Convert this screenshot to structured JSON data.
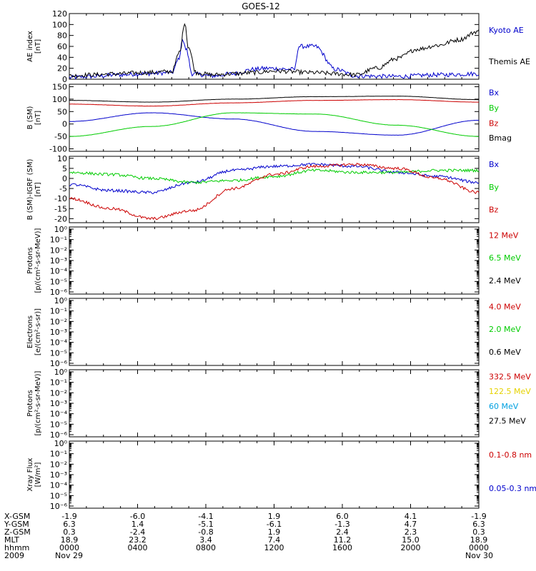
{
  "title": "GOES-12",
  "colors": {
    "black": "#000000",
    "red": "#cc0000",
    "green": "#00cc00",
    "blue": "#0000cc",
    "yellow": "#e6d200",
    "cyan": "#00a0e0"
  },
  "chart_data": [
    {
      "type": "line",
      "id": "ae",
      "ylabel": [
        "AE index",
        "[nT]"
      ],
      "yticks": [
        0,
        20,
        40,
        60,
        80,
        100,
        120
      ],
      "ylim": [
        0,
        120
      ],
      "yscale": "linear",
      "series": [
        {
          "name": "Kyoto AE",
          "color": "#0000cc",
          "x": [
            0,
            0.05,
            0.12,
            0.18,
            0.25,
            0.27,
            0.275,
            0.285,
            0.3,
            0.35,
            0.4,
            0.45,
            0.48,
            0.55,
            0.56,
            0.6,
            0.65,
            0.7,
            0.8,
            0.9,
            1.0
          ],
          "y": [
            3,
            5,
            8,
            10,
            12,
            40,
            75,
            55,
            10,
            6,
            10,
            18,
            20,
            18,
            60,
            60,
            18,
            6,
            5,
            8,
            10
          ]
        },
        {
          "name": "Themis AE",
          "color": "#000000",
          "x": [
            0,
            0.05,
            0.12,
            0.18,
            0.25,
            0.27,
            0.282,
            0.29,
            0.31,
            0.35,
            0.4,
            0.45,
            0.5,
            0.6,
            0.65,
            0.7,
            0.75,
            0.8,
            0.85,
            0.9,
            0.95,
            1.0
          ],
          "y": [
            6,
            8,
            10,
            12,
            14,
            50,
            105,
            60,
            12,
            8,
            10,
            12,
            15,
            12,
            10,
            8,
            20,
            38,
            55,
            62,
            72,
            88
          ]
        }
      ]
    },
    {
      "type": "line",
      "id": "bsm",
      "ylabel": [
        "B (SM)",
        "[nT]"
      ],
      "yticks": [
        -100,
        -50,
        0,
        50,
        100,
        150
      ],
      "ylim": [
        -110,
        160
      ],
      "yscale": "linear",
      "series": [
        {
          "name": "Bx",
          "color": "#0000cc",
          "x": [
            0,
            0.2,
            0.4,
            0.6,
            0.8,
            1.0
          ],
          "y": [
            10,
            45,
            20,
            -30,
            -45,
            15
          ]
        },
        {
          "name": "By",
          "color": "#00cc00",
          "x": [
            0,
            0.2,
            0.4,
            0.6,
            0.8,
            1.0
          ],
          "y": [
            -50,
            -10,
            45,
            40,
            -5,
            -50
          ]
        },
        {
          "name": "Bz",
          "color": "#cc0000",
          "x": [
            0,
            0.2,
            0.4,
            0.6,
            0.8,
            1.0
          ],
          "y": [
            80,
            72,
            85,
            95,
            98,
            88
          ]
        },
        {
          "name": "Bmag",
          "color": "#000000",
          "x": [
            0,
            0.2,
            0.4,
            0.6,
            0.8,
            1.0
          ],
          "y": [
            95,
            88,
            100,
            110,
            112,
            98
          ]
        }
      ]
    },
    {
      "type": "line",
      "id": "bigrf",
      "ylabel": [
        "B (SM)-IGRF (SM)",
        "[nT]"
      ],
      "yticks": [
        -20,
        -15,
        -10,
        -5,
        0,
        5,
        10
      ],
      "ylim": [
        -22,
        11
      ],
      "yscale": "linear",
      "series": [
        {
          "name": "Bx",
          "color": "#0000cc",
          "x": [
            0,
            0.1,
            0.2,
            0.3,
            0.4,
            0.5,
            0.6,
            0.7,
            0.8,
            0.9,
            1.0
          ],
          "y": [
            -3,
            -6,
            -7,
            -2,
            4,
            6,
            7,
            6,
            3,
            1,
            -2
          ]
        },
        {
          "name": "By",
          "color": "#00cc00",
          "x": [
            0,
            0.1,
            0.2,
            0.3,
            0.4,
            0.5,
            0.6,
            0.7,
            0.8,
            0.9,
            1.0
          ],
          "y": [
            3,
            2,
            0,
            -2,
            -1,
            1,
            4,
            3,
            3,
            4,
            4
          ]
        },
        {
          "name": "Bz",
          "color": "#cc0000",
          "x": [
            0,
            0.1,
            0.2,
            0.3,
            0.4,
            0.5,
            0.6,
            0.7,
            0.8,
            0.9,
            1.0
          ],
          "y": [
            -10,
            -15,
            -20,
            -16,
            -5,
            2,
            6,
            7,
            5,
            0,
            -7
          ]
        }
      ]
    },
    {
      "type": "line",
      "id": "protons1",
      "ylabel": [
        "Protons",
        "[p/(cm²-s-sr-MeV)]"
      ],
      "yticks": [
        "10⁰",
        "10⁻¹",
        "10⁻²",
        "10⁻³",
        "10⁻⁴",
        "10⁻⁵",
        "10⁻⁶"
      ],
      "yscale": "log",
      "series": [
        {
          "name": "12 MeV",
          "color": "#cc0000"
        },
        {
          "name": "6.5 MeV",
          "color": "#00cc00"
        },
        {
          "name": "2.4 MeV",
          "color": "#000000"
        }
      ]
    },
    {
      "type": "line",
      "id": "electrons",
      "ylabel": [
        "Electrons",
        "[e/(cm²-s-sr)]"
      ],
      "yticks": [
        "10⁰",
        "10⁻¹",
        "10⁻²",
        "10⁻³",
        "10⁻⁴",
        "10⁻⁵",
        "10⁻⁶"
      ],
      "yscale": "log",
      "series": [
        {
          "name": "4.0 MeV",
          "color": "#cc0000"
        },
        {
          "name": "2.0 MeV",
          "color": "#00cc00"
        },
        {
          "name": "0.6 MeV",
          "color": "#000000"
        }
      ]
    },
    {
      "type": "line",
      "id": "protons2",
      "ylabel": [
        "Protons",
        "[p/(cm²-s-sr-MeV)]"
      ],
      "yticks": [
        "10⁰",
        "10⁻¹",
        "10⁻²",
        "10⁻³",
        "10⁻⁴",
        "10⁻⁵",
        "10⁻⁶"
      ],
      "yscale": "log",
      "series": [
        {
          "name": "332.5 MeV",
          "color": "#cc0000"
        },
        {
          "name": "122.5 MeV",
          "color": "#e6d200"
        },
        {
          "name": "60 MeV",
          "color": "#00a0e0"
        },
        {
          "name": "27.5 MeV",
          "color": "#000000"
        }
      ]
    },
    {
      "type": "line",
      "id": "xray",
      "ylabel": [
        "Xray Flux",
        "[W/m²]"
      ],
      "yticks": [
        "10⁰",
        "10⁻¹",
        "10⁻²",
        "10⁻³",
        "10⁻⁴",
        "10⁻⁵",
        "10⁻⁶"
      ],
      "yscale": "log",
      "series": [
        {
          "name": "0.1-0.8 nm",
          "color": "#cc0000"
        },
        {
          "name": "0.05-0.3 nm",
          "color": "#0000cc"
        }
      ]
    }
  ],
  "xaxis": {
    "row_labels": [
      "X-GSM",
      "Y-GSM",
      "Z-GSM",
      "MLT",
      "hhmm",
      "2009"
    ],
    "columns": [
      [
        "-1.9",
        "6.3",
        "0.3",
        "18.9",
        "0000",
        "Nov 29"
      ],
      [
        "-6.0",
        "1.4",
        "-2.4",
        "23.2",
        "0400",
        ""
      ],
      [
        "-4.1",
        "-5.1",
        "-0.8",
        "3.4",
        "0800",
        ""
      ],
      [
        "1.9",
        "-6.1",
        "1.9",
        "7.4",
        "1200",
        ""
      ],
      [
        "6.0",
        "-1.3",
        "2.4",
        "11.2",
        "1600",
        ""
      ],
      [
        "4.1",
        "4.7",
        "2.3",
        "15.0",
        "2000",
        ""
      ],
      [
        "-1.9",
        "6.3",
        "0.3",
        "18.9",
        "0000",
        "Nov 30"
      ]
    ]
  }
}
